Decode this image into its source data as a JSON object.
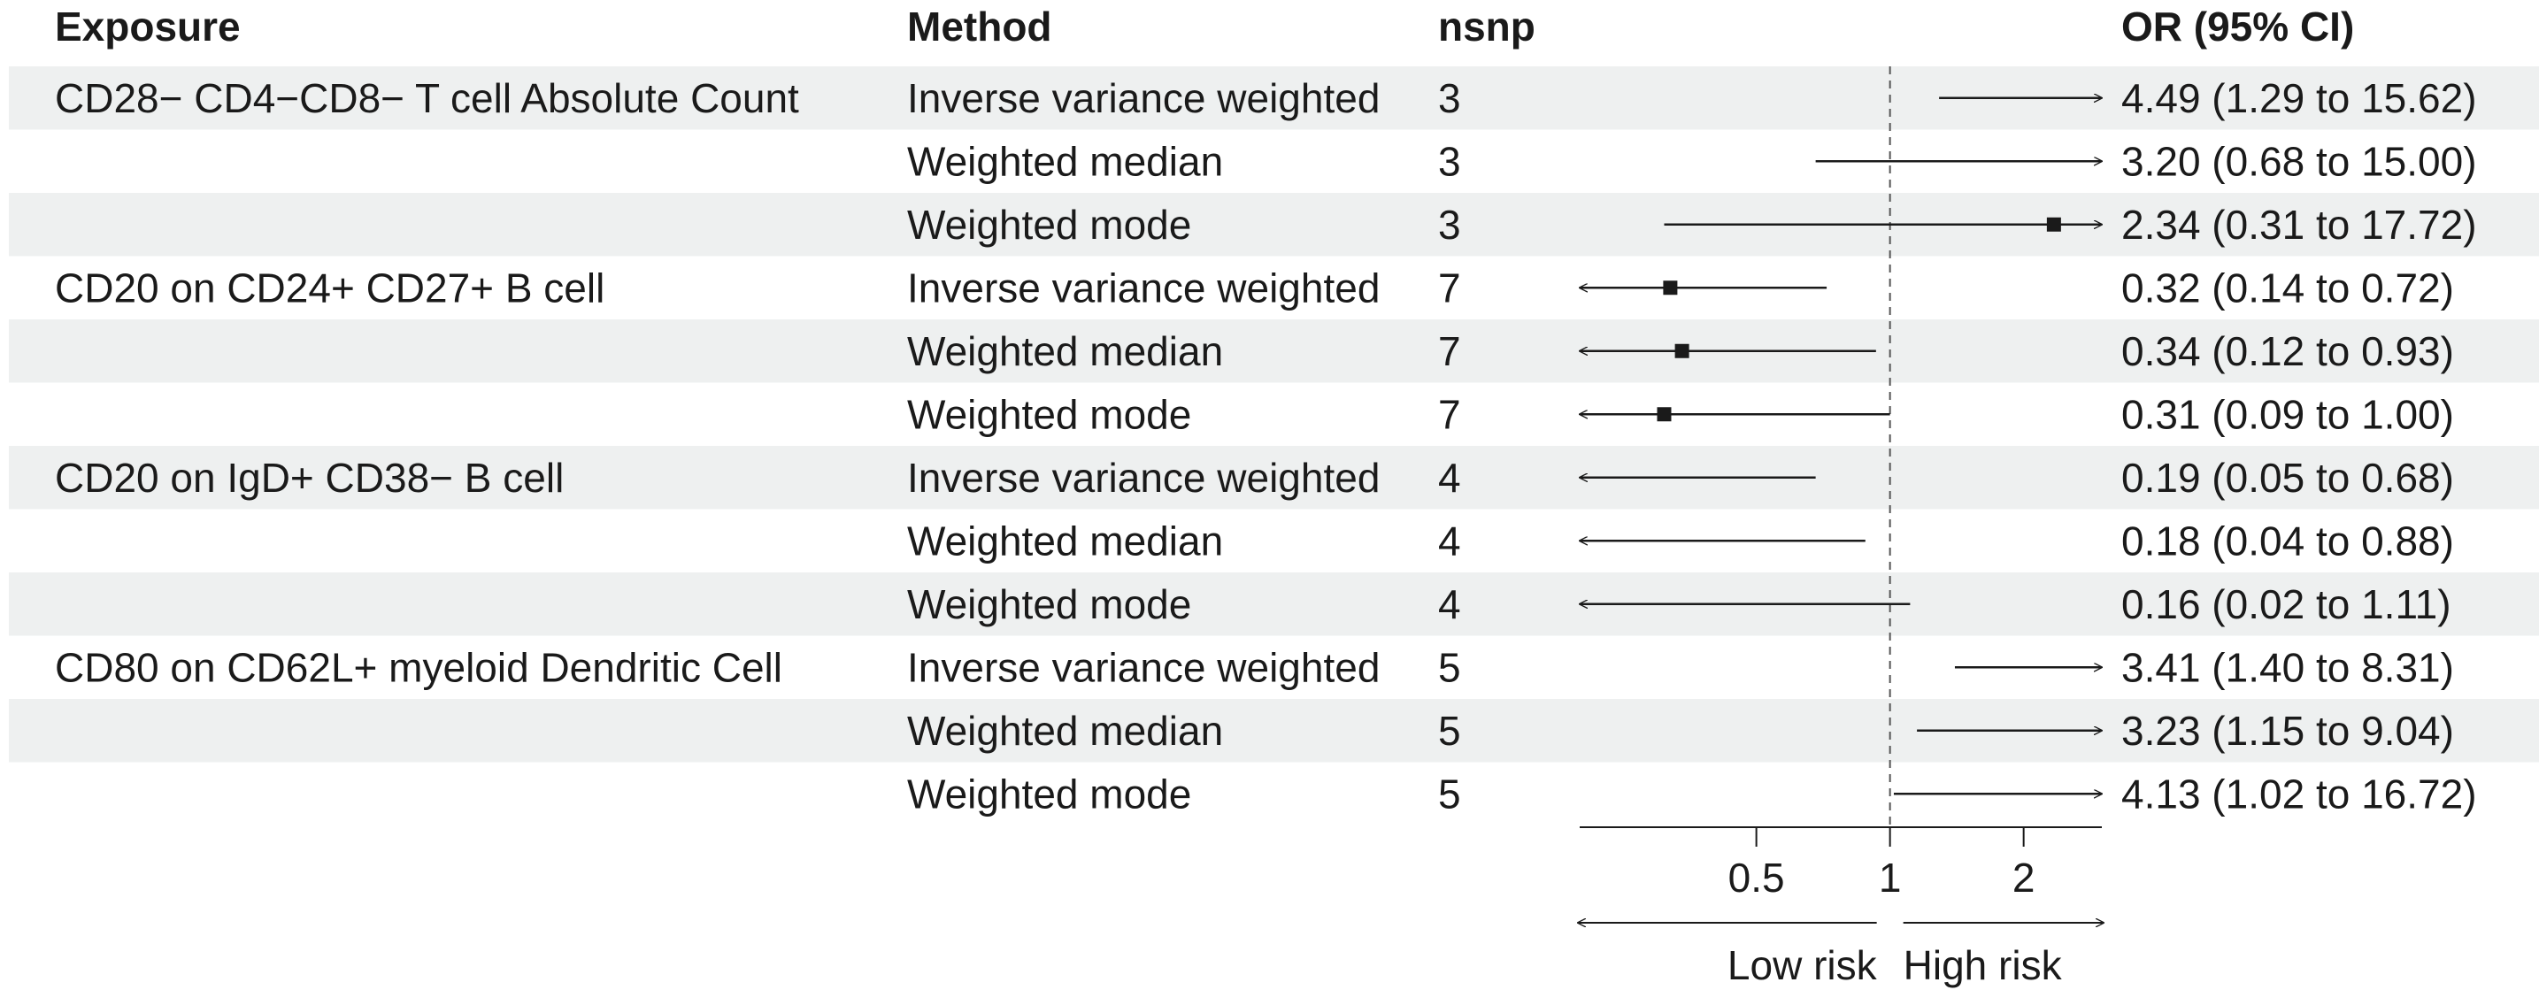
{
  "chart_data": {
    "type": "forest",
    "headers": {
      "exposure": "Exposure",
      "method": "Method",
      "nsnp": "nsnp",
      "or": "OR (95% CI)"
    },
    "rows": [
      {
        "exposure": "CD28− CD4−CD8− T cell Absolute Count",
        "method": "Inverse variance weighted",
        "nsnp": "3",
        "or_text": "4.49 (1.29 to 15.62)",
        "or": 4.49,
        "lo": 1.29,
        "hi": 15.62
      },
      {
        "exposure": "",
        "method": "Weighted median",
        "nsnp": "3",
        "or_text": "3.20 (0.68 to 15.00)",
        "or": 3.2,
        "lo": 0.68,
        "hi": 15.0
      },
      {
        "exposure": "",
        "method": "Weighted mode",
        "nsnp": "3",
        "or_text": "2.34 (0.31 to 17.72)",
        "or": 2.34,
        "lo": 0.31,
        "hi": 17.72
      },
      {
        "exposure": "CD20 on CD24+ CD27+ B cell",
        "method": "Inverse variance weighted",
        "nsnp": "7",
        "or_text": "0.32 (0.14 to 0.72)",
        "or": 0.32,
        "lo": 0.14,
        "hi": 0.72
      },
      {
        "exposure": "",
        "method": "Weighted median",
        "nsnp": "7",
        "or_text": "0.34 (0.12 to 0.93)",
        "or": 0.34,
        "lo": 0.12,
        "hi": 0.93
      },
      {
        "exposure": "",
        "method": "Weighted mode",
        "nsnp": "7",
        "or_text": "0.31 (0.09 to 1.00)",
        "or": 0.31,
        "lo": 0.09,
        "hi": 1.0
      },
      {
        "exposure": "CD20 on IgD+ CD38− B cell",
        "method": "Inverse variance weighted",
        "nsnp": "4",
        "or_text": "0.19 (0.05 to 0.68)",
        "or": 0.19,
        "lo": 0.05,
        "hi": 0.68
      },
      {
        "exposure": "",
        "method": "Weighted median",
        "nsnp": "4",
        "or_text": "0.18 (0.04 to 0.88)",
        "or": 0.18,
        "lo": 0.04,
        "hi": 0.88
      },
      {
        "exposure": "",
        "method": "Weighted mode",
        "nsnp": "4",
        "or_text": "0.16 (0.02 to 1.11)",
        "or": 0.16,
        "lo": 0.02,
        "hi": 1.11
      },
      {
        "exposure": "CD80 on CD62L+ myeloid Dendritic Cell",
        "method": "Inverse variance weighted",
        "nsnp": "5",
        "or_text": "3.41 (1.40 to 8.31)",
        "or": 3.41,
        "lo": 1.4,
        "hi": 8.31
      },
      {
        "exposure": "",
        "method": "Weighted median",
        "nsnp": "5",
        "or_text": "3.23 (1.15 to 9.04)",
        "or": 3.23,
        "lo": 1.15,
        "hi": 9.04
      },
      {
        "exposure": "",
        "method": "Weighted mode",
        "nsnp": "5",
        "or_text": "4.13 (1.02 to 16.72)",
        "or": 4.13,
        "lo": 1.02,
        "hi": 16.72
      }
    ],
    "xaxis": {
      "xlim": [
        0.2,
        3.0
      ],
      "reference": 1,
      "ticks": [
        {
          "value": 0.5,
          "label": "0.5"
        },
        {
          "value": 1,
          "label": "1"
        },
        {
          "value": 2,
          "label": "2"
        }
      ],
      "low_label": "Low risk",
      "high_label": "High risk"
    },
    "colors": {
      "stripe": "#eef0f0",
      "ink": "#1a1a1a",
      "refline": "#555555"
    }
  }
}
